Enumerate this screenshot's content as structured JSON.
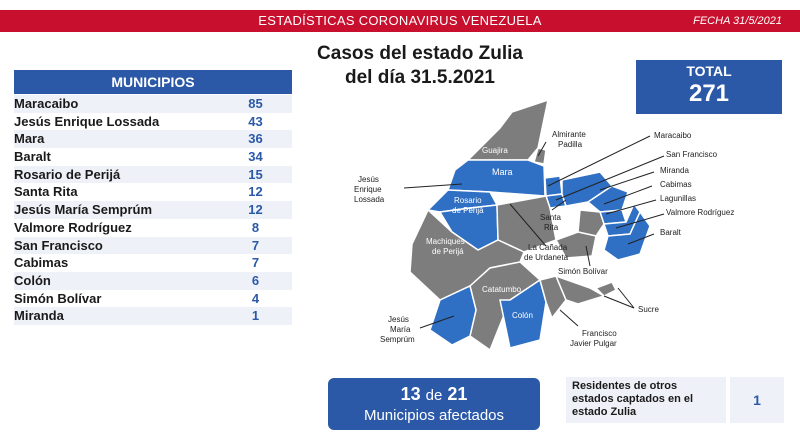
{
  "header": {
    "title": "ESTADÍSTICAS CORONAVIRUS VENEZUELA",
    "date": "FECHA 31/5/2021"
  },
  "heading": {
    "line1": "Casos del estado Zulia",
    "line2": "del día 31.5.2021"
  },
  "total": {
    "label": "TOTAL",
    "value": "271"
  },
  "municipios": {
    "header": "MUNICIPIOS",
    "rows": [
      {
        "name": "Maracaibo",
        "value": "85"
      },
      {
        "name": "Jesús Enrique Lossada",
        "value": "43"
      },
      {
        "name": "Mara",
        "value": "36"
      },
      {
        "name": "Baralt",
        "value": "34"
      },
      {
        "name": "Rosario de Perijá",
        "value": "15"
      },
      {
        "name": "Santa Rita",
        "value": "12"
      },
      {
        "name": "Jesús María Semprúm",
        "value": "12"
      },
      {
        "name": "Valmore Rodríguez",
        "value": "8"
      },
      {
        "name": "San Francisco",
        "value": "7"
      },
      {
        "name": "Cabimas",
        "value": "7"
      },
      {
        "name": "Colón",
        "value": "6"
      },
      {
        "name": "Simón Bolívar",
        "value": "4"
      },
      {
        "name": "Miranda",
        "value": "1"
      }
    ]
  },
  "map": {
    "labels": {
      "guajira": "Guajira",
      "almirante1": "Almirante",
      "almirante2": "Padilla",
      "mara": "Mara",
      "maracaibo": "Maracaibo",
      "sanfrancisco": "San Francisco",
      "miranda": "Miranda",
      "cabimas": "Cabimas",
      "lagunillas": "Lagunillas",
      "valmore": "Valmore Rodríguez",
      "baralt": "Baralt",
      "jel1": "Jesús",
      "jel2": "Enrique",
      "jel3": "Lossada",
      "rosario1": "Rosario",
      "rosario2": "de Perijá",
      "santarita1": "Santa",
      "santarita2": "Rita",
      "canada1": "La Cañada",
      "canada2": "de Urdaneta",
      "machiques1": "Machiques",
      "machiques2": "de Perijá",
      "simonbolivar": "Simón Bolívar",
      "catatumbo": "Catatumbo",
      "colon": "Colón",
      "sucre": "Sucre",
      "jms1": "Jesús",
      "jms2": "María",
      "jms3": "Semprúm",
      "fjp1": "Francisco",
      "fjp2": "Javier Pulgar"
    },
    "colors": {
      "affected": "#2f6fc4",
      "unaffected": "#7d7d7d"
    }
  },
  "affected": {
    "count": "13",
    "de": "de",
    "total": "21",
    "label": "Municipios afectados"
  },
  "residents": {
    "label": "Residentes de otros estados captados en el estado Zulia",
    "value": "1"
  }
}
